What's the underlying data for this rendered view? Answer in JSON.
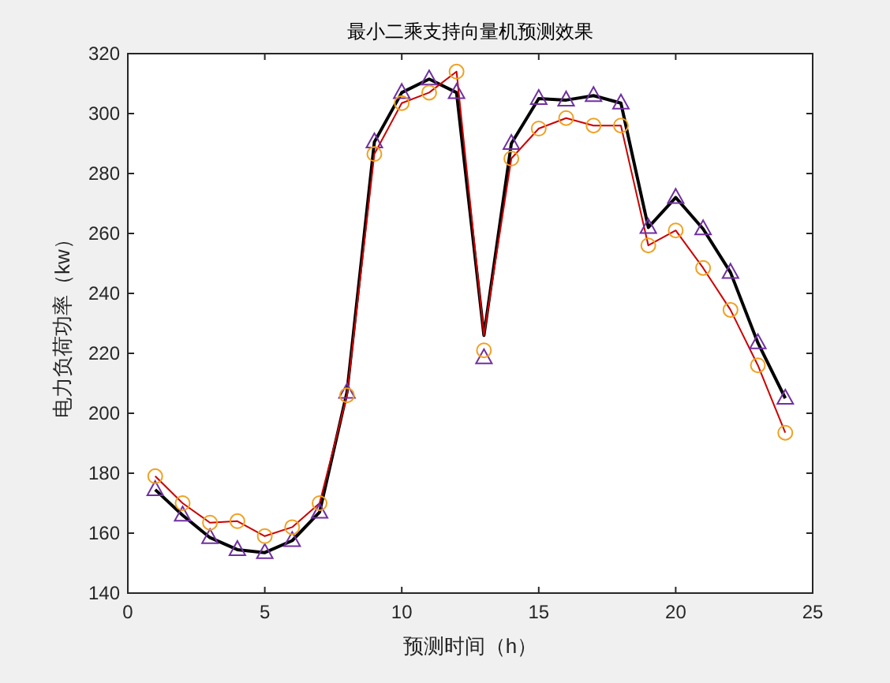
{
  "chart_data": {
    "type": "line",
    "title": "最小二乘支持向量机预测效果",
    "xlabel": "预测时间（h）",
    "ylabel": "电力负荷功率（kw）",
    "x": [
      1,
      2,
      3,
      4,
      5,
      6,
      7,
      8,
      9,
      10,
      11,
      12,
      13,
      14,
      15,
      16,
      17,
      18,
      19,
      20,
      21,
      22,
      23,
      24
    ],
    "xlim": [
      0,
      25
    ],
    "xticks": [
      0,
      5,
      10,
      15,
      20,
      25
    ],
    "ylim": [
      140,
      320
    ],
    "yticks": [
      140,
      160,
      180,
      200,
      220,
      240,
      260,
      280,
      300,
      320
    ],
    "grid": false,
    "series": [
      {
        "type": "line",
        "marker": "none",
        "color": "#000000",
        "values": [
          174.5,
          166,
          158.5,
          154.5,
          153.5,
          157.5,
          167,
          207,
          290.5,
          307,
          311.5,
          307,
          226,
          290,
          305,
          304.5,
          306,
          303.5,
          262,
          272,
          261.5,
          247,
          223.5,
          205
        ]
      },
      {
        "type": "line",
        "marker": "none",
        "color": "#cc0000",
        "values": [
          179,
          170,
          163.5,
          164,
          159,
          162,
          170,
          206,
          286.5,
          303.5,
          307,
          314,
          226,
          285,
          295,
          298.5,
          296,
          296,
          256,
          261,
          248.5,
          234.5,
          216,
          193.5
        ]
      },
      {
        "type": "scatter",
        "marker": "triangle",
        "color": "#7030a0",
        "values": [
          174.5,
          166,
          158.5,
          154.5,
          153.5,
          157.5,
          167,
          207,
          290.5,
          307,
          311.5,
          307,
          218.5,
          290,
          305,
          304.5,
          306,
          303.5,
          262,
          272,
          261.5,
          247,
          223.5,
          205
        ]
      },
      {
        "type": "scatter",
        "marker": "circle",
        "color": "#f0a020",
        "values": [
          179,
          170,
          163.5,
          164,
          159,
          162,
          170,
          206,
          286.5,
          303.5,
          307,
          314,
          221,
          285,
          295,
          298.5,
          296,
          296,
          256,
          261,
          248.5,
          234.5,
          216,
          193.5
        ]
      }
    ]
  }
}
